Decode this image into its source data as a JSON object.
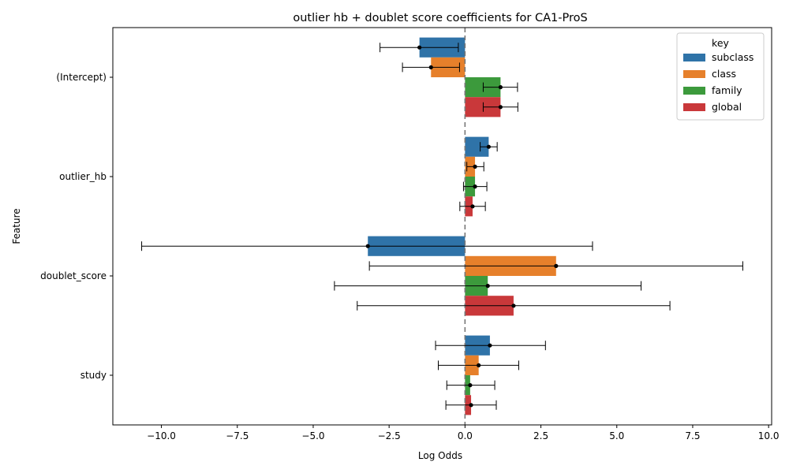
{
  "chart_data": {
    "type": "bar",
    "orientation": "horizontal",
    "title": "outlier hb + doublet score coefficients for CA1-ProS",
    "xlabel": "Log Odds",
    "ylabel": "Feature",
    "xlim": [
      -11.6,
      10.1
    ],
    "xticks": [
      -10.0,
      -7.5,
      -5.0,
      -2.5,
      0.0,
      2.5,
      5.0,
      7.5,
      10.0
    ],
    "xtick_labels": [
      "−10.0",
      "−7.5",
      "−5.0",
      "−2.5",
      "0.0",
      "2.5",
      "5.0",
      "7.5",
      "10.0"
    ],
    "categories": [
      "(Intercept)",
      "outlier_hb",
      "doublet_score",
      "study"
    ],
    "zero_line": "dashed grey vertical line at 0",
    "grid": false,
    "legend": {
      "title": "key",
      "placement": "top-right"
    },
    "series": [
      {
        "name": "subclass",
        "color": "#2f73a8",
        "values": [
          -1.5,
          0.78,
          -3.2,
          0.82
        ],
        "ci_low": [
          -2.8,
          0.5,
          -10.65,
          -0.97
        ],
        "ci_high": [
          -0.22,
          1.06,
          4.2,
          2.65
        ]
      },
      {
        "name": "class",
        "color": "#e6802b",
        "values": [
          -1.12,
          0.33,
          3.0,
          0.45
        ],
        "ci_low": [
          -2.06,
          0.06,
          -3.15,
          -0.88
        ],
        "ci_high": [
          -0.18,
          0.62,
          9.15,
          1.77
        ]
      },
      {
        "name": "family",
        "color": "#3c9a3c",
        "values": [
          1.17,
          0.33,
          0.75,
          0.17
        ],
        "ci_low": [
          0.6,
          -0.05,
          -4.3,
          -0.6
        ],
        "ci_high": [
          1.73,
          0.72,
          5.8,
          0.98
        ]
      },
      {
        "name": "global",
        "color": "#c9383a",
        "values": [
          1.17,
          0.25,
          1.6,
          0.2
        ],
        "ci_low": [
          0.6,
          -0.17,
          -3.55,
          -0.63
        ],
        "ci_high": [
          1.74,
          0.67,
          6.75,
          1.03
        ]
      }
    ]
  }
}
